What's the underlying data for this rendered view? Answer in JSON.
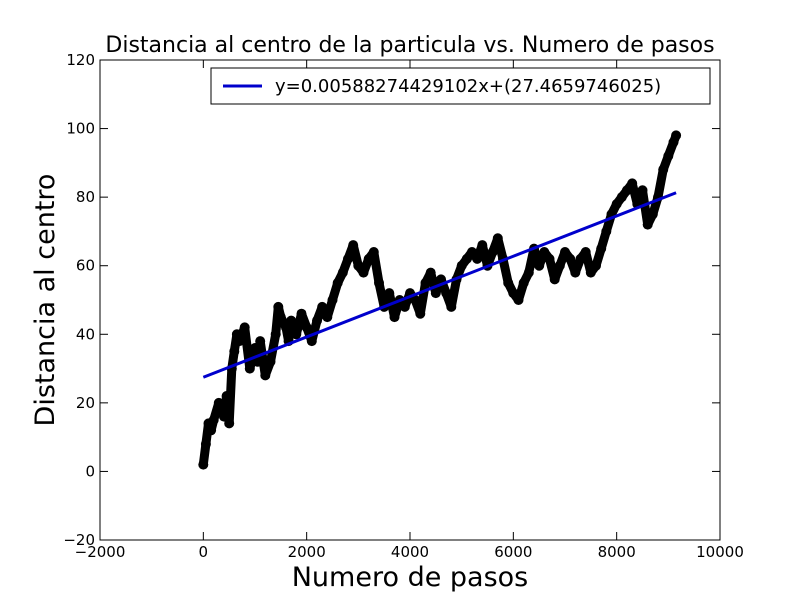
{
  "chart_data": {
    "type": "scatter",
    "title": "Distancia al centro de la particula vs. Numero de pasos",
    "xlabel": "Numero de pasos",
    "ylabel": "Distancia al centro",
    "xlim": [
      -2000,
      10000
    ],
    "ylim": [
      -20,
      120
    ],
    "x_ticks": [
      -2000,
      0,
      2000,
      4000,
      6000,
      8000,
      10000
    ],
    "x_tick_labels": [
      "−2000",
      "0",
      "2000",
      "4000",
      "6000",
      "8000",
      "10000"
    ],
    "y_ticks": [
      -20,
      0,
      20,
      40,
      60,
      80,
      100,
      120
    ],
    "y_tick_labels": [
      "−20",
      "0",
      "20",
      "40",
      "60",
      "80",
      "100",
      "120"
    ],
    "grid": false,
    "legend_position": "top-right",
    "series": [
      {
        "kind": "points",
        "color": "#000000",
        "x": [
          0,
          50,
          100,
          150,
          200,
          300,
          400,
          450,
          500,
          550,
          600,
          650,
          700,
          800,
          900,
          1000,
          1050,
          1100,
          1200,
          1300,
          1400,
          1450,
          1500,
          1600,
          1650,
          1700,
          1800,
          1900,
          2000,
          2100,
          2200,
          2300,
          2400,
          2500,
          2600,
          2700,
          2800,
          2900,
          3000,
          3100,
          3200,
          3300,
          3400,
          3500,
          3600,
          3700,
          3800,
          3900,
          4000,
          4100,
          4200,
          4300,
          4400,
          4500,
          4600,
          4700,
          4800,
          4900,
          5000,
          5100,
          5200,
          5300,
          5400,
          5500,
          5600,
          5700,
          5800,
          5900,
          6000,
          6100,
          6200,
          6300,
          6400,
          6500,
          6600,
          6700,
          6800,
          6900,
          7000,
          7100,
          7200,
          7300,
          7400,
          7500,
          7600,
          7700,
          7800,
          7900,
          8000,
          8100,
          8200,
          8300,
          8400,
          8500,
          8600,
          8700,
          8800,
          8900,
          9000,
          9100,
          9150
        ],
        "y": [
          2,
          8,
          14,
          12,
          15,
          20,
          16,
          22,
          14,
          30,
          35,
          40,
          38,
          42,
          30,
          36,
          32,
          38,
          28,
          32,
          40,
          48,
          45,
          42,
          38,
          44,
          40,
          46,
          42,
          38,
          44,
          48,
          45,
          50,
          55,
          58,
          62,
          66,
          60,
          58,
          62,
          64,
          55,
          48,
          52,
          45,
          50,
          48,
          52,
          50,
          46,
          55,
          58,
          52,
          56,
          52,
          48,
          56,
          60,
          62,
          64,
          62,
          66,
          60,
          64,
          68,
          62,
          55,
          52,
          50,
          55,
          58,
          65,
          60,
          64,
          62,
          56,
          60,
          64,
          62,
          58,
          62,
          64,
          58,
          60,
          65,
          70,
          75,
          78,
          80,
          82,
          84,
          78,
          82,
          72,
          75,
          80,
          88,
          92,
          96,
          98
        ]
      },
      {
        "kind": "fit-line",
        "name": "y=0.00588274429102x+(27.4659746025)",
        "color": "#0000cc",
        "x": [
          0,
          9150
        ],
        "y": [
          27.47,
          81.29
        ]
      }
    ]
  }
}
